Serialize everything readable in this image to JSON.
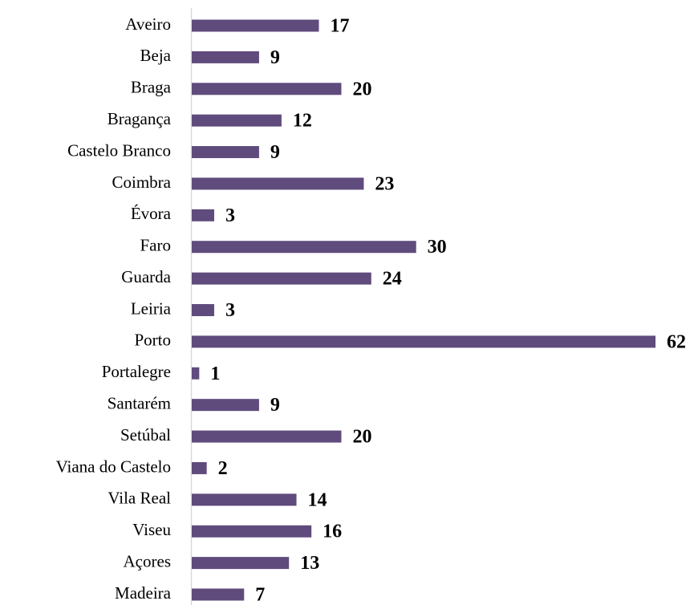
{
  "chart_data": {
    "type": "bar",
    "orientation": "horizontal",
    "categories": [
      "Aveiro",
      "Beja",
      "Braga",
      "Bragança",
      "Castelo Branco",
      "Coimbra",
      "Évora",
      "Faro",
      "Guarda",
      "Leiria",
      "Porto",
      "Portalegre",
      "Santarém",
      "Setúbal",
      "Viana do Castelo",
      "Vila Real",
      "Viseu",
      "Açores",
      "Madeira"
    ],
    "values": [
      17,
      9,
      20,
      12,
      9,
      23,
      3,
      30,
      24,
      3,
      62,
      1,
      9,
      20,
      2,
      14,
      16,
      13,
      7
    ],
    "color": "#5f4b7c"
  }
}
